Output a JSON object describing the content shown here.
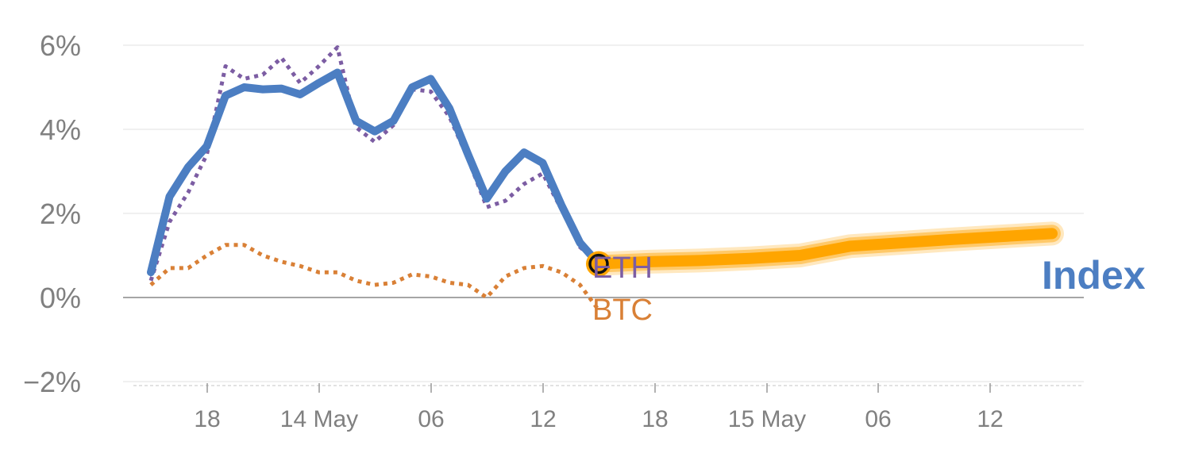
{
  "chart_data": {
    "type": "line",
    "title": "",
    "xlabel": "",
    "ylabel": "",
    "ylim": [
      -2,
      6
    ],
    "y_ticks": [
      -2,
      0,
      2,
      4,
      6
    ],
    "y_tick_labels": [
      "−2%",
      "0%",
      "2%",
      "4%",
      "6%"
    ],
    "x_tick_labels": [
      "18",
      "14 May",
      "06",
      "12",
      "18",
      "15 May",
      "06",
      "12"
    ],
    "grid": true,
    "legend": "inline labels at line ends",
    "series": [
      {
        "name": "Index",
        "color": "#4c7ec2",
        "style": "solid",
        "values": [
          0.6,
          2.4,
          3.1,
          3.6,
          4.8,
          5.0,
          4.95,
          4.97,
          4.83,
          5.1,
          5.35,
          4.2,
          3.95,
          4.2,
          5.0,
          5.2,
          4.5,
          3.4,
          2.35,
          3.0,
          3.45,
          3.2,
          2.2,
          1.3,
          0.8
        ]
      },
      {
        "name": "ETH",
        "color": "#7c5da3",
        "style": "dotted",
        "values": [
          0.4,
          1.8,
          2.5,
          3.4,
          5.5,
          5.2,
          5.3,
          5.7,
          5.1,
          5.5,
          5.95,
          4.05,
          3.7,
          4.1,
          4.95,
          4.9,
          4.3,
          3.3,
          2.15,
          2.3,
          2.7,
          2.95,
          2.1,
          1.2,
          0.8
        ]
      },
      {
        "name": "BTC",
        "color": "#d98036",
        "style": "dotted",
        "values": [
          0.3,
          0.7,
          0.7,
          1.0,
          1.25,
          1.25,
          1.0,
          0.85,
          0.75,
          0.6,
          0.6,
          0.4,
          0.3,
          0.35,
          0.55,
          0.5,
          0.35,
          0.3,
          0.0,
          0.5,
          0.7,
          0.75,
          0.6,
          0.3,
          -0.3
        ]
      }
    ],
    "forecast": {
      "color": "#ffa500",
      "values": [
        0.8,
        0.85,
        0.88,
        0.93,
        1.0,
        1.22,
        1.3,
        1.38,
        1.45,
        1.52
      ]
    }
  }
}
